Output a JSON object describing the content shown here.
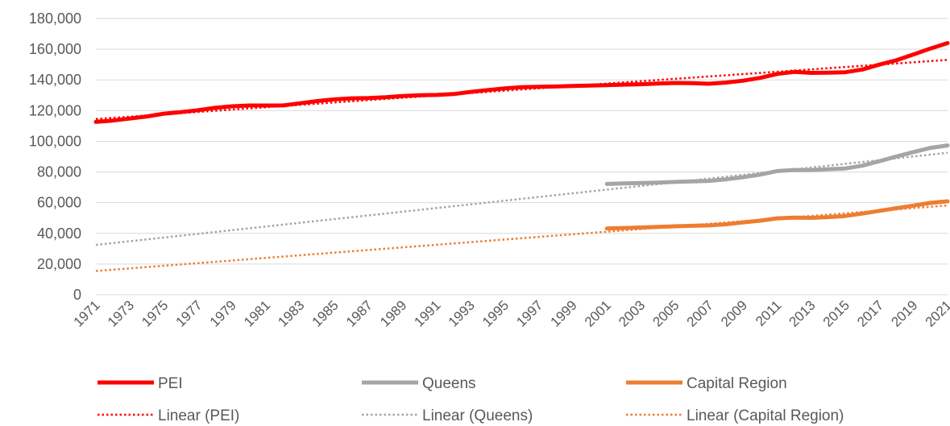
{
  "chart_data": {
    "type": "line",
    "title": "",
    "xlabel": "",
    "ylabel": "",
    "ylim": [
      0,
      180000
    ],
    "yticks": [
      0,
      20000,
      40000,
      60000,
      80000,
      100000,
      120000,
      140000,
      160000,
      180000
    ],
    "ytick_labels": [
      "0",
      "20,000",
      "40,000",
      "60,000",
      "80,000",
      "100,000",
      "120,000",
      "140,000",
      "160,000",
      "180,000"
    ],
    "x_range": [
      1971,
      2021
    ],
    "xtick_labels": [
      "1971",
      "1973",
      "1975",
      "1977",
      "1979",
      "1981",
      "1983",
      "1985",
      "1987",
      "1989",
      "1991",
      "1993",
      "1995",
      "1997",
      "1999",
      "2001",
      "2003",
      "2005",
      "2007",
      "2009",
      "2011",
      "2013",
      "2015",
      "2017",
      "2019",
      "2021"
    ],
    "grid": true,
    "legend_position": "bottom",
    "series": [
      {
        "name": "PEI",
        "color": "#ff0000",
        "style": "solid",
        "x": [
          1971,
          1972,
          1973,
          1974,
          1975,
          1976,
          1977,
          1978,
          1979,
          1980,
          1981,
          1982,
          1983,
          1984,
          1985,
          1986,
          1987,
          1988,
          1989,
          1990,
          1991,
          1992,
          1993,
          1994,
          1995,
          1996,
          1997,
          1998,
          1999,
          2000,
          2001,
          2002,
          2003,
          2004,
          2005,
          2006,
          2007,
          2008,
          2009,
          2010,
          2011,
          2012,
          2013,
          2014,
          2015,
          2016,
          2017,
          2018,
          2019,
          2020,
          2021
        ],
        "values": [
          112600,
          113500,
          114800,
          116200,
          118000,
          119000,
          120300,
          121800,
          122800,
          123300,
          123300,
          123400,
          124800,
          126200,
          127300,
          128000,
          128200,
          128700,
          129500,
          130000,
          130200,
          130800,
          132200,
          133400,
          134500,
          135300,
          135500,
          135700,
          136000,
          136300,
          136600,
          136900,
          137200,
          137600,
          138000,
          137900,
          137500,
          138300,
          139500,
          141300,
          143900,
          145200,
          144600,
          144700,
          145000,
          146800,
          150000,
          152800,
          156600,
          160500,
          164000
        ]
      },
      {
        "name": "Queens",
        "color": "#a5a5a5",
        "style": "solid",
        "x": [
          2001,
          2002,
          2003,
          2004,
          2005,
          2006,
          2007,
          2008,
          2009,
          2010,
          2011,
          2012,
          2013,
          2014,
          2015,
          2016,
          2017,
          2018,
          2019,
          2020,
          2021
        ],
        "values": [
          72200,
          72500,
          72800,
          73100,
          73500,
          73900,
          74200,
          75200,
          76600,
          78300,
          80600,
          81300,
          81300,
          81800,
          82300,
          84100,
          87000,
          90100,
          93000,
          95700,
          97300
        ]
      },
      {
        "name": "Capital Region",
        "color": "#ed7d31",
        "style": "solid",
        "x": [
          2001,
          2002,
          2003,
          2004,
          2005,
          2006,
          2007,
          2008,
          2009,
          2010,
          2011,
          2012,
          2013,
          2014,
          2015,
          2016,
          2017,
          2018,
          2019,
          2020,
          2021
        ],
        "values": [
          43200,
          43500,
          43800,
          44200,
          44600,
          44900,
          45200,
          45900,
          47200,
          48300,
          49800,
          50200,
          50100,
          50600,
          51300,
          52900,
          54700,
          56400,
          58100,
          59900,
          60900
        ]
      },
      {
        "name": "Linear (PEI)",
        "color": "#ff0000",
        "style": "dotted",
        "x": [
          1971,
          2021
        ],
        "values": [
          114500,
          153000
        ]
      },
      {
        "name": "Linear (Queens)",
        "color": "#a5a5a5",
        "style": "dotted",
        "x": [
          1971,
          2021
        ],
        "values": [
          32500,
          92500
        ]
      },
      {
        "name": "Linear (Capital Region)",
        "color": "#ed7d31",
        "style": "dotted",
        "x": [
          1971,
          2021
        ],
        "values": [
          15500,
          58200
        ]
      }
    ]
  }
}
